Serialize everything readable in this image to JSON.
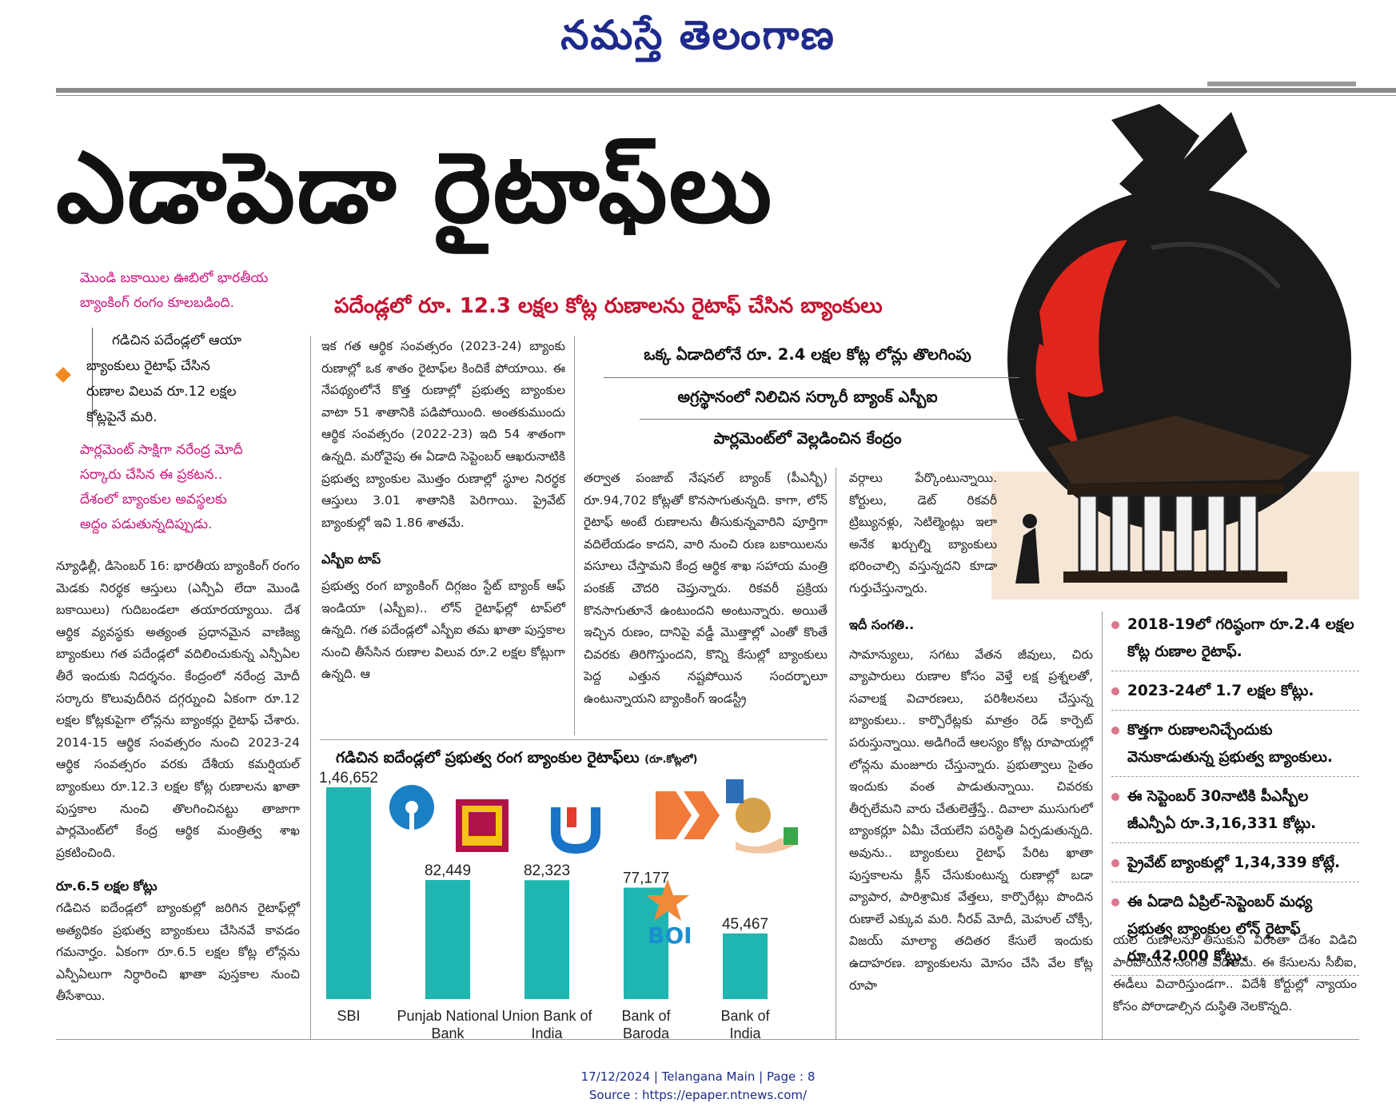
{
  "masthead": "నమస్తే తెలంగాణ",
  "headline": "ఎడాపెడా రైటాఫ్‌లు",
  "deck": "పదేండ్లలో రూ. 12.3 లక్షల కోట్ల రుణాలను రైటాఫ్‌ చేసిన బ్యాంకులు",
  "dek_lines": [
    "ఒక్క ఏడాదిలోనే రూ. 2.4 లక్షల కోట్ల లోన్లు తొలగింపు",
    "అగ్రస్థానంలో నిలిచిన సర్కారీ బ్యాంక్‌ ఎస్బీఐ",
    "పార్లమెంట్‌లో వెల్లడించిన కేంద్రం"
  ],
  "left_pink_top": [
    "మొండి బకాయిల ఊబిలో భారతీయ",
    "బ్యాంకింగ్‌ రంగం కూలబడింది."
  ],
  "left_black_box": [
    "గడిచిన పదేండ్లలో ఆయా",
    "బ్యాంకులు రైటాఫ్‌ చేసిన",
    "రుణాల విలువ రూ.12 లక్షల",
    "కోట్లపైనే మరి."
  ],
  "left_pink_bottom": [
    "పార్లమెంట్‌ సాక్షిగా నరేంద్ర మోదీ",
    "సర్కారు చేసిన ఈ ప్రకటన..",
    "దేశంలో బ్యాంకుల అవస్థలకు",
    "అద్దం పడుతున్నదిప్పుడు."
  ],
  "col1": {
    "para1": "న్యూఢిల్లీ, డిసెంబర్‌ 16: భారతీయ బ్యాంకింగ్‌ రంగం మెడకు నిరర్థక ఆస్తులు (ఎన్పీఏ లేదా మొండి బకాయిలు) గుదిబండలా తయారయ్యాయి. దేశ ఆర్థిక వ్యవస్థకు అత్యంత ప్రధానమైన వాణిజ్య బ్యాంకులు గత పదేండ్లలో వదిలించుకున్న ఎన్పీఏల తీరే ఇందుకు నిదర్శనం. కేంద్రంలో నరేంద్ర మోదీ సర్కారు కొలువుదీరిన దగ్గర్నుంచి ఏకంగా రూ.12 లక్షల కోట్లకుపైగా లోన్లను బ్యాంకర్లు రైటాఫ్‌ చేశారు. 2014-15 ఆర్థిక సంవత్సరం నుంచి 2023-24 ఆర్థిక సంవత్సరం వరకు దేశీయ కమర్షియల్‌ బ్యాంకులు రూ.12.3 లక్షల కోట్ల రుణాలను ఖాతా పుస్తకాల నుంచి తొలగించినట్టు తాజాగా పార్లమెంట్‌లో కేంద్ర ఆర్థిక మంత్రిత్వ శాఖ ప్రకటించింది.",
    "subhead": "రూ.6.5 లక్షల కోట్లు",
    "para2": "గడిచిన ఐదేండ్లలో బ్యాంకుల్లో జరిగిన రైటాఫ్‌ల్లో అత్యధికం ప్రభుత్వ బ్యాంకులు చేసినవే కావడం గమనార్హం. ఏకంగా రూ.6.5 లక్షల కోట్ల లోన్లను ఎన్పీఏలుగా నిర్ధారించి ఖాతా పుస్తకాల నుంచి తీసేశాయి."
  },
  "col2": {
    "para1": "ఇక గత ఆర్థిక సంవత్సరం (2023-24) బ్యాంకు రుణాల్లో ఒక శాతం రైటాఫ్‌ల కిందికే పోయాయి. ఈ నేపథ్యంలోనే కొత్త రుణాల్లో ప్రభుత్వ బ్యాంకుల వాటా 51 శాతానికి పడిపోయింది. అంతకుముందు ఆర్థిక సంవత్సరం (2022-23) ఇది 54 శాతంగా ఉన్నది. మరోవైపు ఈ ఏడాది సెప్టెంబర్‌ ఆఖరునాటికి ప్రభుత్వ బ్యాంకుల మొత్తం రుణాల్లో స్థూల నిరర్థక ఆస్తులు 3.01 శాతానికి పెరిగాయి. ప్రైవేట్‌ బ్యాంకుల్లో ఇవి 1.86 శాతమే.",
    "subhead": "ఎస్బీఐ టాప్‌",
    "para2": "ప్రభుత్వ రంగ బ్యాంకింగ్‌ దిగ్గజం స్టేట్‌ బ్యాంక్‌ ఆఫ్‌ ఇండియా (ఎస్బీఐ).. లోన్‌ రైటాఫ్‌ల్లో టాప్‌లో ఉన్నది. గత పదేండ్లలో ఎస్బీఐ తమ ఖాతా పుస్తకాల నుంచి తీసేసిన రుణాల విలువ రూ.2 లక్షల కోట్లుగా ఉన్నది. ఆ"
  },
  "col3": {
    "para1": "తర్వాత పంజాబ్‌ నేషనల్‌ బ్యాంక్‌ (పీఎన్బీ) రూ.94,702 కోట్లతో కొనసాగుతున్నది. కాగా, లోన్‌ రైటాఫ్‌ అంటే రుణాలను తీసుకున్నవారిని పూర్తిగా వదిలేయడం కాదని, వారి నుంచి రుణ బకాయిలను వసూలు చేస్తామని కేంద్ర ఆర్థిక శాఖ సహాయ మంత్రి పంకజ్‌ చౌదరి చెప్తున్నారు. రికవరీ ప్రక్రియ కొనసాగుతూనే ఉంటుందని అంటున్నారు. అయితే ఇచ్చిన రుణం, దానిపై వడ్డీ మొత్తాల్లో ఎంతో కొంతే చివరకు తిరిగొస్తుందని, కొన్ని కేసుల్లో బ్యాంకులు పెద్ద ఎత్తున నష్టపోయిన సందర్భాలూ ఉంటున్నాయని బ్యాంకింగ్‌ ఇండస్ట్రీ"
  },
  "col4": {
    "para1": "వర్గాలు పేర్కొంటున్నాయి. కోర్టులు, డెట్‌ రికవరీ ట్రిబ్యునళ్లు, సెటిల్మెంట్లు ఇలా అనేక ఖర్చుల్ని బ్యాంకులు భరించాల్సి వస్తున్నదని కూడా గుర్తుచేస్తున్నారు.",
    "subhead": "ఇదీ సంగతి..",
    "para2": "సామాన్యులు, సగటు వేతన జీవులు, చిరు వ్యాపారులు రుణాల కోసం వెళ్తే లక్ష ప్రశ్నలతో, సవాలక్ష విచారణలు, పరిశీలనలు చేస్తున్న బ్యాంకులు.. కార్పొరేట్లకు మాత్రం రెడ్‌ కార్పెట్‌ పరుస్తున్నాయి. అడిగిందే ఆలస్యం కోట్ల రూపాయల్లో లోన్లను మంజూరు చేస్తున్నారు. ప్రభుత్వాలు సైతం ఇందుకు వంత పాడుతున్నాయి. చివరకు తీర్చలేమని వారు చేతులెత్తేస్తే.. దివాలా ముసుగులో బ్యాంకర్లూ ఏమీ చేయలేని పరిస్థితి ఏర్పడుతున్నది. అవును.. బ్యాంకులు రైటాఫ్‌ పేరిట ఖాతా పుస్తకాలను క్లీన్‌ చేసుకుంటున్న రుణాల్లో బడా వ్యాపార, పారిశ్రామిక వేత్తలు, కార్పొరేట్లు పొందిన రుణాలే ఎక్కువ మరి. నీరవ్‌ మోదీ, మెహుల్‌ చోక్సీ, విజయ్‌ మాల్యా తదితర కేసులే ఇందుకు ఉదాహరణ. బ్యాంకులను మోసం చేసి వేల కోట్ల రూపా"
  },
  "col5": {
    "bullets": [
      "2018-19లో గరిష్ఠంగా రూ.2.4 లక్షల కోట్ల రుణాల రైటాఫ్‌.",
      "2023-24లో 1.7 లక్షల కోట్లు.",
      "కొత్తగా రుణాలనిచ్చేందుకు వెనుకాడుతున్న ప్రభుత్వ బ్యాంకులు.",
      "ఈ సెప్టెంబర్‌ 30నాటికి పీఎస్బీల జీఎన్పీఏ రూ.3,16,331 కోట్లు.",
      "ప్రైవేట్‌ బ్యాంకుల్లో 1,34,339 కోట్లే.",
      "ఈ ఏడాది ఏప్రిల్‌-సెప్టెంబర్‌ మధ్య ప్రభుత్వ బ్యాంకుల లోన్‌ రైటాఫ్‌ రూ.42,000 కోట్లు."
    ],
    "para": "యల రుణాలను తీసుకుని వీరంతా దేశం విడిచి పారిపోయిన సంగతి విదితమే. ఈ కేసులను సీబీఐ, ఈడీలు విచారిస్తుండగా.. విదేశీ కోర్టుల్లో న్యాయం కోసం పోరాడాల్సిన దుస్థితి నెలకొన్నది."
  },
  "chart_data": {
    "type": "bar",
    "title": "గడిచిన ఐదేండ్లలో ప్రభుత్వ రంగ బ్యాంకుల రైటాఫ్‌లు",
    "unit_note": "(రూ.కోట్లలో)",
    "categories": [
      "SBI",
      "Punjab National Bank",
      "Union Bank of India",
      "Bank of Baroda",
      "Bank of India"
    ],
    "category_lines": [
      [
        "SBI"
      ],
      [
        "Punjab National",
        "Bank"
      ],
      [
        "Union Bank of",
        "India"
      ],
      [
        "Bank of",
        "Baroda"
      ],
      [
        "Bank of",
        "India"
      ]
    ],
    "values": [
      146652,
      82449,
      82323,
      77177,
      45467
    ],
    "value_labels": [
      "1,46,652",
      "82,449",
      "82,323",
      "77,177",
      "45,467"
    ],
    "ylim": [
      0,
      146652
    ],
    "bar_color": "#1fb5b0",
    "logo_text_boi": "BOI"
  },
  "footer": {
    "line1": "17/12/2024 | Telangana Main | Page : 8",
    "line2": "Source : https://epaper.ntnews.com/"
  },
  "colors": {
    "masthead": "#1e2a8c",
    "deck": "#c8102e",
    "pink": "#d0157f"
  }
}
